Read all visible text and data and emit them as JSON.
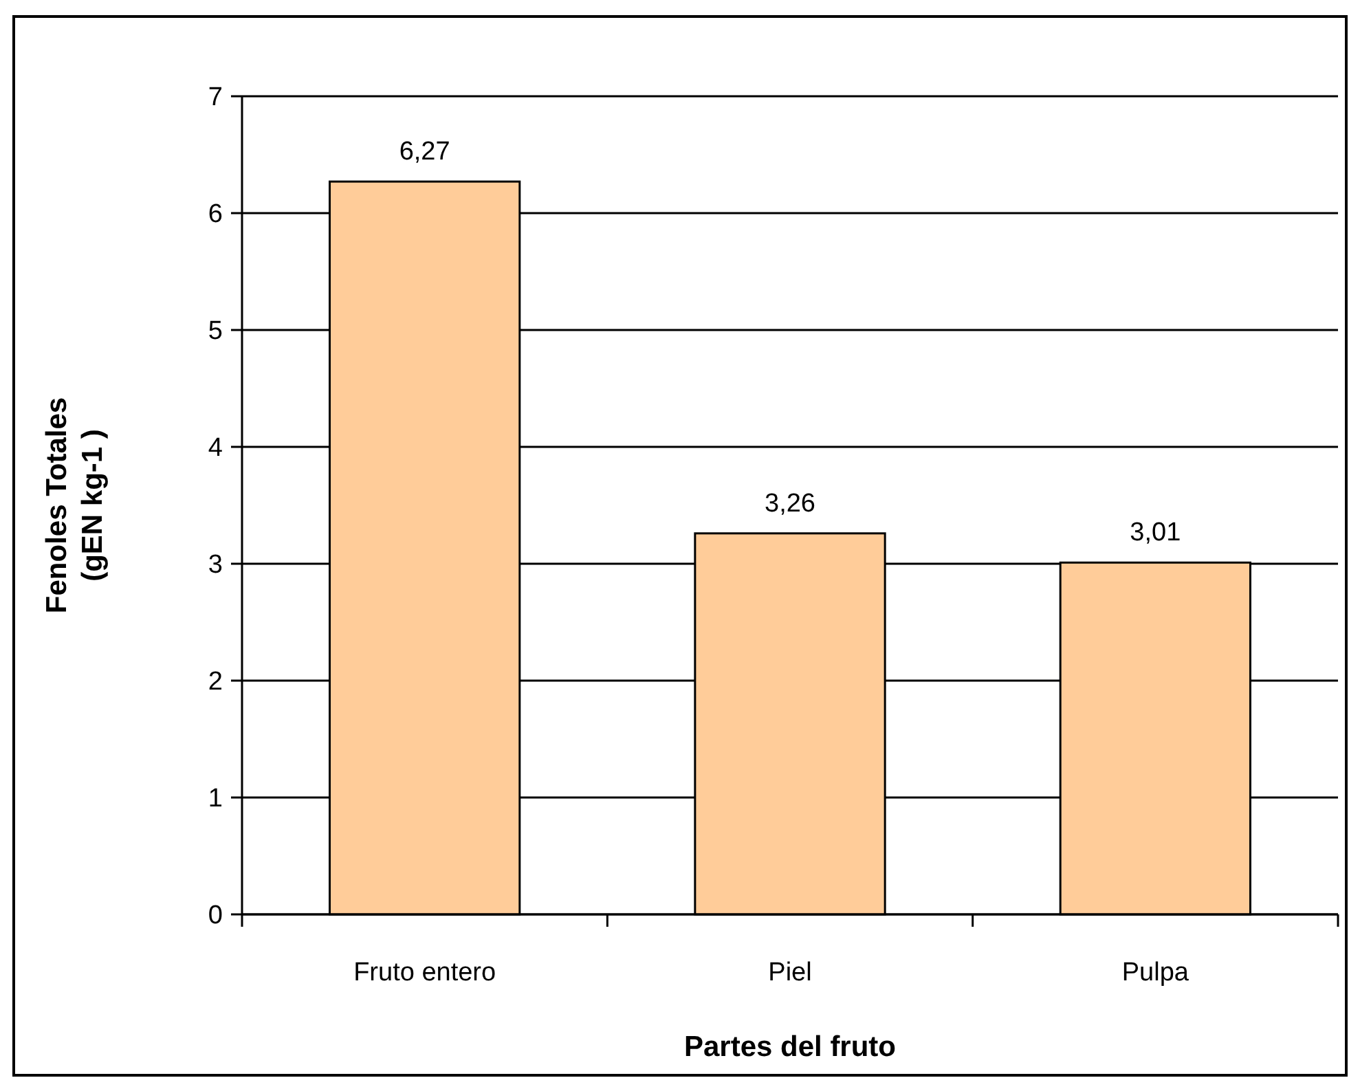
{
  "chart_data": {
    "type": "bar",
    "xlabel": "Partes del fruto",
    "ylabel": "Fenoles Totales\n(gEN kg-1 )",
    "categories": [
      "Fruto entero",
      "Piel",
      "Pulpa"
    ],
    "values": [
      6.27,
      3.26,
      3.01
    ],
    "value_labels": [
      "6,27",
      "3,26",
      "3,01"
    ],
    "color": "#ffcc99",
    "ylim": [
      0,
      7
    ],
    "yticks": [
      0,
      1,
      2,
      3,
      4,
      5,
      6,
      7
    ],
    "grid": "y"
  }
}
